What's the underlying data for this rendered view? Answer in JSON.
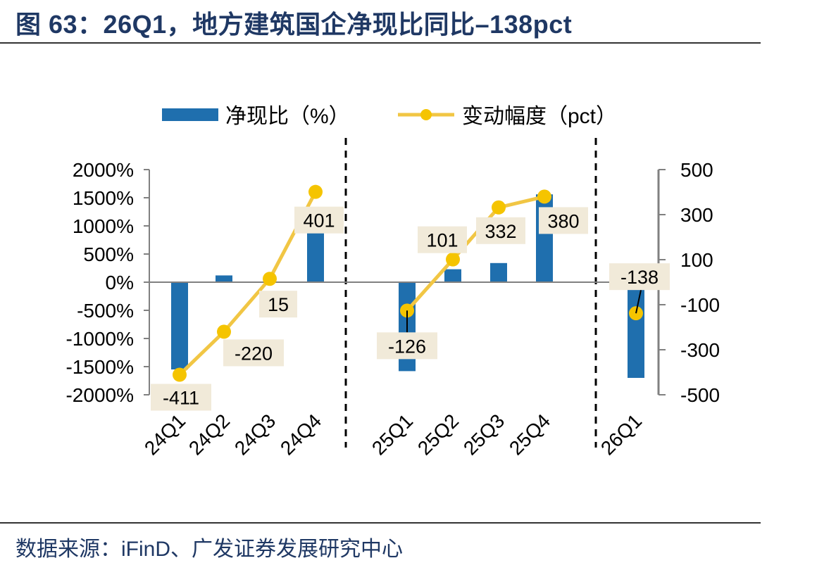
{
  "title": "图 63：26Q1，地方建筑国企净现比同比–138pct",
  "source": "数据来源：iFinD、广发证券发展研究中心",
  "colors": {
    "bar": "#1f6fae",
    "line": "#f1c644",
    "marker": "#f5c400",
    "label_bg": "#f1ead9",
    "axis": "#808080"
  },
  "chart_data": {
    "type": "bar",
    "categories": [
      "24Q1",
      "24Q2",
      "24Q3",
      "24Q4",
      "25Q1",
      "25Q2",
      "25Q3",
      "25Q4",
      "26Q1"
    ],
    "series": [
      {
        "name": "净现比（%）",
        "type": "bar",
        "axis": "left",
        "values": [
          -1550,
          120,
          0,
          1050,
          -1580,
          230,
          340,
          1560,
          -1700
        ]
      },
      {
        "name": "变动幅度（pct）",
        "type": "line",
        "axis": "right",
        "values": [
          -411,
          -220,
          15,
          401,
          -126,
          101,
          332,
          380,
          -138
        ],
        "labels": [
          "-411",
          "-220",
          "15",
          "401",
          "-126",
          "101",
          "332",
          "380",
          "-138"
        ]
      }
    ],
    "y_left": {
      "ylim": [
        -2000,
        2000
      ],
      "ticks": [
        2000,
        1500,
        1000,
        500,
        0,
        -500,
        -1000,
        -1500,
        -2000
      ],
      "tick_labels": [
        "2000%",
        "1500%",
        "1000%",
        "500%",
        "0%",
        "-500%",
        "-1000%",
        "-1500%",
        "-2000%"
      ]
    },
    "y_right": {
      "ylim": [
        -500,
        500
      ],
      "ticks": [
        500,
        300,
        100,
        -100,
        -300,
        -500
      ],
      "tick_labels": [
        "500",
        "300",
        "100",
        "-100",
        "-300",
        "-500"
      ]
    },
    "separators_after": [
      "24Q4",
      "25Q4"
    ],
    "legend_position": "top-center",
    "grid": false
  }
}
